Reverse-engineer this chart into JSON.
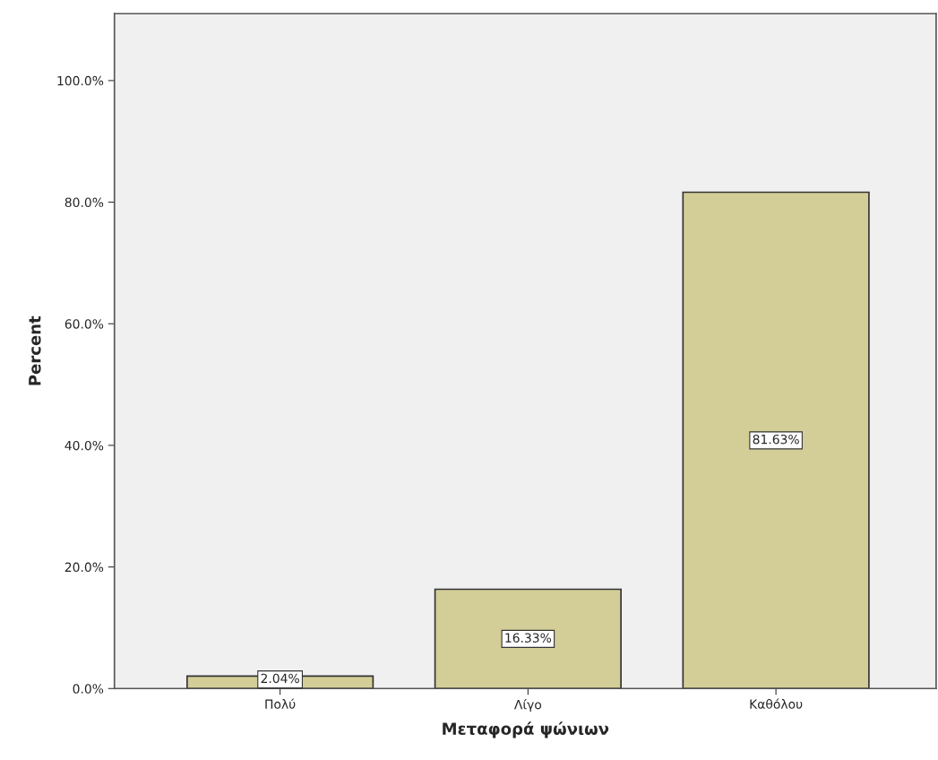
{
  "chart_data": {
    "type": "bar",
    "xlabel": "Μεταφορά ψώνιων",
    "ylabel": "Percent",
    "categories": [
      "Πολύ",
      "Λίγο",
      "Καθόλου"
    ],
    "values": [
      2.04,
      16.33,
      81.63
    ],
    "value_labels": [
      "2.04%",
      "16.33%",
      "81.63%"
    ],
    "color": "#d3ce97",
    "ylim": [
      0,
      111
    ],
    "yticks": [
      {
        "value": 0,
        "label": "0.0%"
      },
      {
        "value": 20,
        "label": "20.0%"
      },
      {
        "value": 40,
        "label": "40.0%"
      },
      {
        "value": 60,
        "label": "60.0%"
      },
      {
        "value": 80,
        "label": "80.0%"
      },
      {
        "value": 100,
        "label": "100.0%"
      }
    ],
    "grid": false
  }
}
